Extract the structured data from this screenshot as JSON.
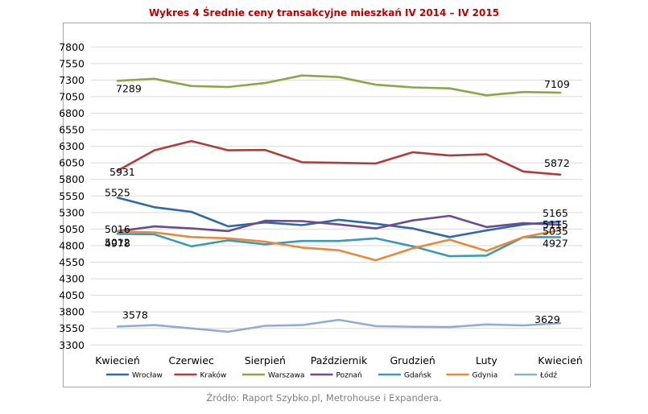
{
  "chart_data": {
    "type": "line",
    "title": "Wykres 4 Średnie ceny transakcyjne mieszkań IV 2014 – IV 2015",
    "source": "Źródło: Raport Szybko.pl, Metrohouse i Expandera.",
    "xlabel": "",
    "ylabel": "",
    "ylim": [
      3300,
      7800
    ],
    "yticks": [
      "7800",
      "7550",
      "7300",
      "7050",
      "6800",
      "6550",
      "6300",
      "6050",
      "5800",
      "5550",
      "5300",
      "5050",
      "4800",
      "4550",
      "4300",
      "4050",
      "3800",
      "3550",
      "3300"
    ],
    "x_tick_labels": [
      "Kwiecień",
      "Czerwiec",
      "Sierpień",
      "Październik",
      "Grudzień",
      "Luty",
      "Kwiecień"
    ],
    "grid": true,
    "legend_position": "bottom",
    "series": [
      {
        "name": "Wrocław",
        "color": "#2e6aa6",
        "values": [
          5525,
          5380,
          5310,
          5090,
          5150,
          5110,
          5190,
          5130,
          5060,
          4930,
          5030,
          5120,
          5165
        ]
      },
      {
        "name": "Kraków",
        "color": "#b03b38",
        "values": [
          5931,
          6240,
          6380,
          6240,
          6245,
          6060,
          6050,
          6040,
          6210,
          6160,
          6180,
          5920,
          5872
        ]
      },
      {
        "name": "Warszawa",
        "color": "#8aa84a",
        "values": [
          7289,
          7320,
          7210,
          7195,
          7255,
          7370,
          7345,
          7230,
          7190,
          7175,
          7070,
          7120,
          7109
        ]
      },
      {
        "name": "Poznań",
        "color": "#6b4c8f",
        "values": [
          5016,
          5090,
          5060,
          5020,
          5175,
          5170,
          5120,
          5060,
          5180,
          5250,
          5080,
          5140,
          5115
        ]
      },
      {
        "name": "Gdańsk",
        "color": "#3b9ab5",
        "values": [
          4978,
          4970,
          4790,
          4880,
          4820,
          4870,
          4870,
          4910,
          4790,
          4640,
          4650,
          4930,
          4927
        ]
      },
      {
        "name": "Gdynia",
        "color": "#e8883a",
        "values": [
          5012,
          5000,
          4930,
          4910,
          4860,
          4770,
          4730,
          4580,
          4760,
          4890,
          4720,
          4930,
          5035
        ]
      },
      {
        "name": "Łódź",
        "color": "#93acd0",
        "values": [
          3578,
          3600,
          3550,
          3500,
          3590,
          3600,
          3680,
          3585,
          3575,
          3570,
          3610,
          3595,
          3629
        ]
      }
    ],
    "data_labels": [
      {
        "series": 2,
        "index": 0,
        "text": "7289"
      },
      {
        "series": 2,
        "index": 12,
        "text": "7109"
      },
      {
        "series": 1,
        "index": 0,
        "text": "5931"
      },
      {
        "series": 1,
        "index": 12,
        "text": "5872"
      },
      {
        "series": 0,
        "index": 0,
        "text": "5525"
      },
      {
        "series": 3,
        "index": 0,
        "text": "5016"
      },
      {
        "series": 5,
        "index": 0,
        "text": "5012"
      },
      {
        "series": 4,
        "index": 0,
        "text": "4978"
      },
      {
        "series": 0,
        "index": 12,
        "text": "5165"
      },
      {
        "series": 3,
        "index": 12,
        "text": "5115"
      },
      {
        "series": 5,
        "index": 12,
        "text": "5035"
      },
      {
        "series": 4,
        "index": 12,
        "text": "4927"
      },
      {
        "series": 6,
        "index": 0,
        "text": "3578"
      },
      {
        "series": 6,
        "index": 12,
        "text": "3629"
      }
    ]
  }
}
